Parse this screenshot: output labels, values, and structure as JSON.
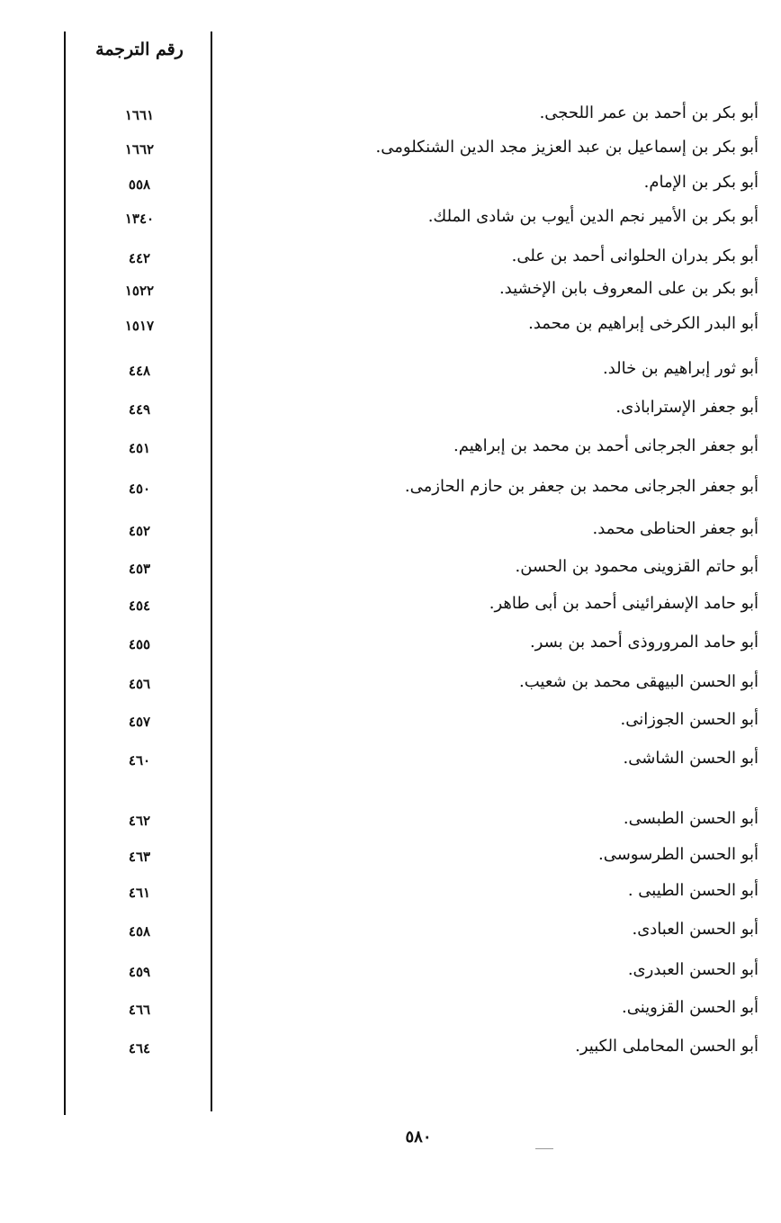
{
  "index_table": {
    "column_header": "رقم الترجمة",
    "entries": [
      {
        "name": "أبو بكر بن أحمد بن عمر اللحجى.",
        "number": "١٦٦١"
      },
      {
        "name": "أبو بكر بن إسماعيل بن عبد العزيز مجد الدين الشنكلومى.",
        "number": "١٦٦٢"
      },
      {
        "name": "أبو بكر بن الإمام.",
        "number": "٥٥٨"
      },
      {
        "name": "أبو بكر بن الأمير نجم الدين أيوب بن شادى الملك.",
        "number": "١٣٤٠"
      },
      {
        "name": "أبو بكر بدران الحلوانى أحمد بن على.",
        "number": "٤٤٢"
      },
      {
        "name": "أبو بكر بن على المعروف بابن الإخشيد.",
        "number": "١٥٢٢"
      },
      {
        "name": "أبو البدر الكرخى إبراهيم بن محمد.",
        "number": "١٥١٧"
      },
      {
        "name": "أبو ثور إبراهيم بن خالد.",
        "number": "٤٤٨"
      },
      {
        "name": "أبو جعفر الإستراباذى.",
        "number": "٤٤٩"
      },
      {
        "name": "أبو جعفر الجرجانى أحمد بن محمد بن إبراهيم.",
        "number": "٤٥١"
      },
      {
        "name": "أبو جعفر الجرجانى محمد بن جعفر بن حازم الحازمى.",
        "number": "٤٥٠"
      },
      {
        "name": "أبو جعفر الحناطى محمد.",
        "number": "٤٥٢"
      },
      {
        "name": "أبو حاتم القزوينى محمود بن الحسن.",
        "number": "٤٥٣"
      },
      {
        "name": "أبو حامد الإسفرائينى أحمد بن أبى طاهر.",
        "number": "٤٥٤"
      },
      {
        "name": "أبو حامد المروروذى أحمد بن بسر.",
        "number": "٤٥٥"
      },
      {
        "name": "أبو الحسن البيهقى محمد بن شعيب.",
        "number": "٤٥٦"
      },
      {
        "name": "أبو الحسن الجوزانى.",
        "number": "٤٥٧"
      },
      {
        "name": "أبو الحسن الشاشى.",
        "number": "٤٦٠"
      },
      {
        "name": "أبو الحسن الطبسى.",
        "number": "٤٦٢"
      },
      {
        "name": "أبو الحسن الطرسوسى.",
        "number": "٤٦٣"
      },
      {
        "name": "أبو الحسن الطيبى .",
        "number": "٤٦١"
      },
      {
        "name": "أبو الحسن العبادى.",
        "number": "٤٥٨"
      },
      {
        "name": "أبو الحسن العبدرى.",
        "number": "٤٥٩"
      },
      {
        "name": "أبو الحسن القزوينى.",
        "number": "٤٦٦"
      },
      {
        "name": "أبو الحسن المحاملى الكبير.",
        "number": "٤٦٤"
      }
    ]
  },
  "page_number": "٥٨٠"
}
